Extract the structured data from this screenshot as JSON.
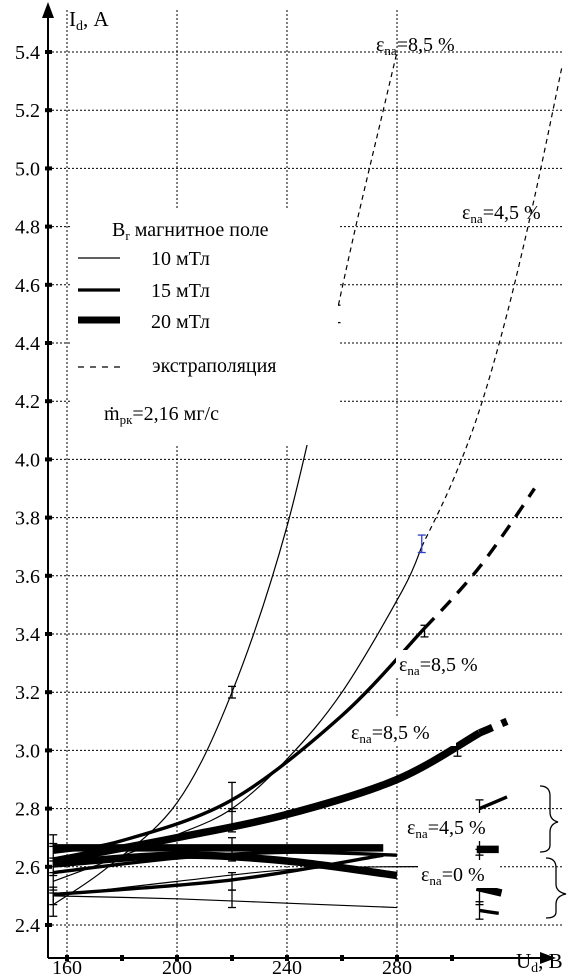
{
  "chart_data": {
    "type": "line",
    "title": "",
    "xlabel": "U",
    "xlabel_sub": "d",
    "xlabel_unit": ", В",
    "ylabel": "I",
    "ylabel_sub": "d",
    "ylabel_unit": ", А",
    "xlim": [
      150,
      310
    ],
    "ylim": [
      2.35,
      5.5
    ],
    "grid": true,
    "x_ticks": [
      160,
      200,
      240,
      280
    ],
    "y_ticks": [
      2.4,
      2.6,
      2.8,
      3.0,
      3.2,
      3.4,
      3.6,
      3.8,
      4.0,
      4.2,
      4.4,
      4.6,
      4.8,
      5.0,
      5.2,
      5.4
    ],
    "legend": {
      "title_main": "B",
      "title_sub": "r",
      "title_rest": " магнитное поле",
      "entries": [
        {
          "label": "10 мТл",
          "style": "thin"
        },
        {
          "label": "15 мТл",
          "style": "medium"
        },
        {
          "label": "20 мТл",
          "style": "thick"
        },
        {
          "label": "экстраполяция",
          "style": "dashed"
        }
      ],
      "mass_flow": {
        "main": "ṁ",
        "sub": "рк",
        "rest": "=2,16 мг/с"
      }
    },
    "annotations": [
      {
        "id": "a1",
        "main": "ε",
        "sub": "na",
        "rest": "=8,5 %"
      },
      {
        "id": "a2",
        "main": "ε",
        "sub": "na",
        "rest": "=4,5 %"
      },
      {
        "id": "a3",
        "main": "ε",
        "sub": "na",
        "rest": "=8,5 %"
      },
      {
        "id": "a4",
        "main": "ε",
        "sub": "na",
        "rest": "=8,5 %"
      },
      {
        "id": "a5",
        "main": "ε",
        "sub": "na",
        "rest": "=4,5 %"
      },
      {
        "id": "a6",
        "main": "ε",
        "sub": "na",
        "rest": "=0 %"
      }
    ],
    "series": [
      {
        "field": "10 мТл",
        "eps": "8,5 %",
        "x": [
          155,
          175,
          200,
          220,
          240,
          258
        ],
        "y": [
          2.47,
          2.6,
          2.82,
          3.2,
          3.77,
          4.5
        ],
        "ext_x": [
          258,
          265,
          275,
          280
        ],
        "ext_y": [
          4.5,
          4.8,
          5.2,
          5.4
        ]
      },
      {
        "field": "10 мТл",
        "eps": "4,5 %",
        "x": [
          155,
          175,
          200,
          220,
          240,
          260,
          282,
          289
        ],
        "y": [
          2.55,
          2.62,
          2.71,
          2.8,
          2.97,
          3.2,
          3.55,
          3.7
        ],
        "ext_x": [
          289,
          300,
          310,
          320,
          330,
          340
        ],
        "ext_y": [
          3.7,
          3.92,
          4.17,
          4.5,
          4.9,
          5.35
        ]
      },
      {
        "field": "10 мТл",
        "eps": "0 %",
        "x": [
          155,
          200,
          240,
          275,
          310
        ],
        "y": [
          2.5,
          2.55,
          2.59,
          2.6,
          2.6
        ],
        "ext_x": [],
        "ext_y": []
      },
      {
        "field": "10 мТл",
        "eps": "0 %",
        "x": [
          155,
          200,
          240,
          280
        ],
        "y": [
          2.5,
          2.49,
          2.475,
          2.46
        ],
        "ext_x": [],
        "ext_y": []
      },
      {
        "field": "15 мТл",
        "eps": "8,5 %",
        "x": [
          155,
          180,
          220,
          260,
          290
        ],
        "y": [
          2.65,
          2.69,
          2.83,
          3.12,
          3.42
        ],
        "ext_x": [
          290,
          300,
          310,
          320,
          330
        ],
        "ext_y": [
          3.42,
          3.52,
          3.63,
          3.76,
          3.9
        ]
      },
      {
        "field": "15 мТл",
        "eps": "4,5 %",
        "x": [
          155,
          200,
          240,
          280
        ],
        "y": [
          2.58,
          2.63,
          2.65,
          2.64
        ],
        "ext_x": [],
        "ext_y": []
      },
      {
        "field": "15 мТл",
        "eps": "0 %",
        "x": [
          155,
          220,
          275
        ],
        "y": [
          2.505,
          2.555,
          2.64
        ],
        "ext_x": [],
        "ext_y": []
      },
      {
        "field": "15 мТл",
        "eps": "4,5 %",
        "x": [
          310,
          320
        ],
        "y": [
          2.8,
          2.84
        ],
        "ext_x": [],
        "ext_y": []
      },
      {
        "field": "15 мТл",
        "eps": "0 %",
        "x": [
          310,
          317
        ],
        "y": [
          2.45,
          2.44
        ],
        "ext_x": [],
        "ext_y": []
      },
      {
        "field": "20 мТл",
        "eps": "8,5 %",
        "x": [
          155,
          200,
          240,
          280,
          310
        ],
        "y": [
          2.62,
          2.7,
          2.78,
          2.9,
          3.06
        ],
        "ext_x": [
          310,
          315,
          320
        ],
        "ext_y": [
          3.06,
          3.08,
          3.1
        ]
      },
      {
        "field": "20 мТл",
        "eps": "4,5 %",
        "x": [
          155,
          200,
          240,
          275
        ],
        "y": [
          2.665,
          2.665,
          2.665,
          2.665
        ],
        "ext_x": [],
        "ext_y": []
      },
      {
        "field": "20 мТл",
        "eps": "0 %",
        "x": [
          155,
          200,
          240,
          280
        ],
        "y": [
          2.61,
          2.64,
          2.62,
          2.57
        ],
        "ext_x": [],
        "ext_y": []
      },
      {
        "field": "20 мТл",
        "eps": "4,5 %",
        "x": [
          309,
          317
        ],
        "y": [
          2.66,
          2.66
        ],
        "ext_x": [],
        "ext_y": []
      },
      {
        "field": "20 мТл",
        "eps": "0 %",
        "x": [
          309,
          318
        ],
        "y": [
          2.53,
          2.51
        ],
        "ext_x": [],
        "ext_y": []
      }
    ],
    "error_bars": [
      {
        "x": 155,
        "y": 2.47,
        "err": 0.04
      },
      {
        "x": 155,
        "y": 2.5,
        "err": 0.03
      },
      {
        "x": 155,
        "y": 2.55,
        "err": 0.03
      },
      {
        "x": 155,
        "y": 2.6,
        "err": 0.03
      },
      {
        "x": 155,
        "y": 2.65,
        "err": 0.03
      },
      {
        "x": 155,
        "y": 2.69,
        "err": 0.02
      },
      {
        "x": 220,
        "y": 3.2,
        "err": 0.02
      },
      {
        "x": 220,
        "y": 2.84,
        "err": 0.05
      },
      {
        "x": 220,
        "y": 2.76,
        "err": 0.04
      },
      {
        "x": 220,
        "y": 2.66,
        "err": 0.04
      },
      {
        "x": 220,
        "y": 2.55,
        "err": 0.03
      },
      {
        "x": 220,
        "y": 2.49,
        "err": 0.03
      },
      {
        "x": 258,
        "y": 4.5,
        "err": 0.03
      },
      {
        "x": 289,
        "y": 3.71,
        "err": 0.03,
        "color": "#2f3fc8"
      },
      {
        "x": 290,
        "y": 3.41,
        "err": 0.02
      },
      {
        "x": 302,
        "y": 3.0,
        "err": 0.02
      },
      {
        "x": 310,
        "y": 2.8,
        "err": 0.03
      },
      {
        "x": 310,
        "y": 2.67,
        "err": 0.03
      },
      {
        "x": 310,
        "y": 2.62,
        "err": 0.04
      },
      {
        "x": 310,
        "y": 2.5,
        "err": 0.03
      },
      {
        "x": 310,
        "y": 2.45,
        "err": 0.03
      }
    ]
  }
}
